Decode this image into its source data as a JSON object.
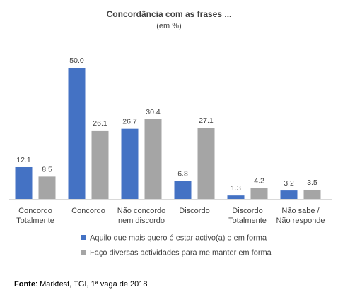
{
  "chart_data": {
    "type": "bar",
    "title": "Concordância com as frases ...",
    "subtitle": "(em %)",
    "categories": [
      [
        "Concordo",
        "Totalmente"
      ],
      [
        "Concordo"
      ],
      [
        "Não concordo",
        "nem discordo"
      ],
      [
        "Discordo"
      ],
      [
        "Discordo",
        "Totalmente"
      ],
      [
        "Não sabe /",
        "Não responde"
      ]
    ],
    "series": [
      {
        "name": "Aquilo que mais quero é estar activo(a) e em forma",
        "color": "#4472C4",
        "values": [
          12.1,
          50.0,
          26.7,
          6.8,
          1.3,
          3.2
        ]
      },
      {
        "name": "Faço diversas actividades para me manter em forma",
        "color": "#A5A5A5",
        "values": [
          8.5,
          26.1,
          30.4,
          27.1,
          4.2,
          3.5
        ]
      }
    ],
    "ylim": [
      0,
      50
    ],
    "grid": false,
    "legend": "bottom"
  },
  "source": {
    "label": "Fonte",
    "text": ": Marktest, TGI, 1ª vaga de 2018"
  }
}
